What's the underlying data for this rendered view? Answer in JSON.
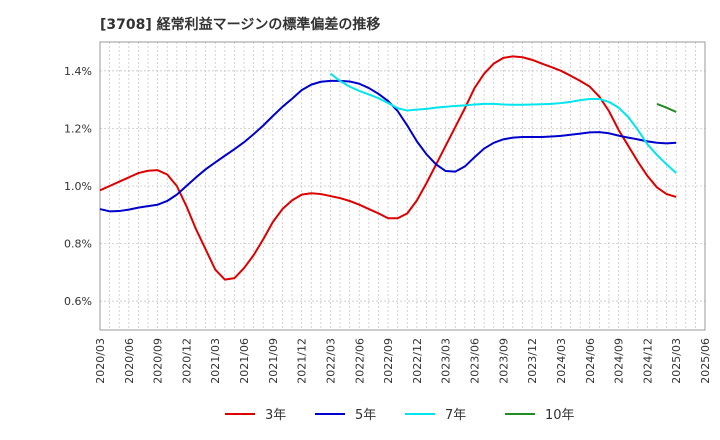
{
  "chart_data": {
    "type": "line",
    "title": "[3708]  経常利益マージンの標準偏差の推移",
    "xlabel": "",
    "ylabel": "",
    "ylim": [
      0.5,
      1.5
    ],
    "yticks": [
      0.6,
      0.8,
      1.0,
      1.2,
      1.4
    ],
    "ytick_labels": [
      "0.6%",
      "0.8%",
      "1.0%",
      "1.2%",
      "1.4%"
    ],
    "xticks": [
      "2020/03",
      "2020/06",
      "2020/09",
      "2020/12",
      "2021/03",
      "2021/06",
      "2021/09",
      "2021/12",
      "2022/03",
      "2022/06",
      "2022/09",
      "2022/12",
      "2023/03",
      "2023/06",
      "2023/09",
      "2023/12",
      "2024/03",
      "2024/06",
      "2024/09",
      "2024/12",
      "2025/03",
      "2025/06"
    ],
    "grid": true,
    "legend_position": "bottom",
    "series": [
      {
        "name": "3年",
        "color": "#dd0000",
        "points": [
          [
            "2020/03",
            0.985
          ],
          [
            "2020/04",
            1.0
          ],
          [
            "2020/05",
            1.015
          ],
          [
            "2020/06",
            1.03
          ],
          [
            "2020/07",
            1.045
          ],
          [
            "2020/08",
            1.053
          ],
          [
            "2020/09",
            1.055
          ],
          [
            "2020/10",
            1.04
          ],
          [
            "2020/11",
            1.0
          ],
          [
            "2020/12",
            0.93
          ],
          [
            "2021/01",
            0.85
          ],
          [
            "2021/02",
            0.78
          ],
          [
            "2021/03",
            0.71
          ],
          [
            "2021/04",
            0.675
          ],
          [
            "2021/05",
            0.68
          ],
          [
            "2021/06",
            0.715
          ],
          [
            "2021/07",
            0.76
          ],
          [
            "2021/08",
            0.815
          ],
          [
            "2021/09",
            0.875
          ],
          [
            "2021/10",
            0.92
          ],
          [
            "2021/11",
            0.95
          ],
          [
            "2021/12",
            0.97
          ],
          [
            "2022/01",
            0.975
          ],
          [
            "2022/02",
            0.972
          ],
          [
            "2022/03",
            0.965
          ],
          [
            "2022/04",
            0.958
          ],
          [
            "2022/05",
            0.948
          ],
          [
            "2022/06",
            0.935
          ],
          [
            "2022/07",
            0.92
          ],
          [
            "2022/08",
            0.905
          ],
          [
            "2022/09",
            0.888
          ],
          [
            "2022/10",
            0.888
          ],
          [
            "2022/11",
            0.905
          ],
          [
            "2022/12",
            0.95
          ],
          [
            "2023/01",
            1.01
          ],
          [
            "2023/02",
            1.075
          ],
          [
            "2023/03",
            1.14
          ],
          [
            "2023/04",
            1.205
          ],
          [
            "2023/05",
            1.27
          ],
          [
            "2023/06",
            1.34
          ],
          [
            "2023/07",
            1.39
          ],
          [
            "2023/08",
            1.425
          ],
          [
            "2023/09",
            1.445
          ],
          [
            "2023/10",
            1.45
          ],
          [
            "2023/11",
            1.447
          ],
          [
            "2023/12",
            1.438
          ],
          [
            "2024/01",
            1.425
          ],
          [
            "2024/02",
            1.413
          ],
          [
            "2024/03",
            1.4
          ],
          [
            "2024/04",
            1.383
          ],
          [
            "2024/05",
            1.365
          ],
          [
            "2024/06",
            1.345
          ],
          [
            "2024/07",
            1.31
          ],
          [
            "2024/08",
            1.26
          ],
          [
            "2024/09",
            1.195
          ],
          [
            "2024/10",
            1.14
          ],
          [
            "2024/11",
            1.085
          ],
          [
            "2024/12",
            1.035
          ],
          [
            "2025/01",
            0.995
          ],
          [
            "2025/02",
            0.972
          ],
          [
            "2025/03",
            0.962
          ]
        ]
      },
      {
        "name": "5年",
        "color": "#0000cc",
        "points": [
          [
            "2020/03",
            0.92
          ],
          [
            "2020/04",
            0.912
          ],
          [
            "2020/05",
            0.913
          ],
          [
            "2020/06",
            0.918
          ],
          [
            "2020/07",
            0.925
          ],
          [
            "2020/08",
            0.93
          ],
          [
            "2020/09",
            0.935
          ],
          [
            "2020/10",
            0.948
          ],
          [
            "2020/11",
            0.97
          ],
          [
            "2020/12",
            1.0
          ],
          [
            "2021/01",
            1.03
          ],
          [
            "2021/02",
            1.058
          ],
          [
            "2021/03",
            1.082
          ],
          [
            "2021/04",
            1.105
          ],
          [
            "2021/05",
            1.128
          ],
          [
            "2021/06",
            1.152
          ],
          [
            "2021/07",
            1.18
          ],
          [
            "2021/08",
            1.21
          ],
          [
            "2021/09",
            1.243
          ],
          [
            "2021/10",
            1.275
          ],
          [
            "2021/11",
            1.303
          ],
          [
            "2021/12",
            1.333
          ],
          [
            "2022/01",
            1.352
          ],
          [
            "2022/02",
            1.362
          ],
          [
            "2022/03",
            1.365
          ],
          [
            "2022/04",
            1.365
          ],
          [
            "2022/05",
            1.363
          ],
          [
            "2022/06",
            1.355
          ],
          [
            "2022/07",
            1.34
          ],
          [
            "2022/08",
            1.32
          ],
          [
            "2022/09",
            1.295
          ],
          [
            "2022/10",
            1.26
          ],
          [
            "2022/11",
            1.21
          ],
          [
            "2022/12",
            1.155
          ],
          [
            "2023/01",
            1.11
          ],
          [
            "2023/02",
            1.075
          ],
          [
            "2023/03",
            1.052
          ],
          [
            "2023/04",
            1.05
          ],
          [
            "2023/05",
            1.068
          ],
          [
            "2023/06",
            1.1
          ],
          [
            "2023/07",
            1.13
          ],
          [
            "2023/08",
            1.15
          ],
          [
            "2023/09",
            1.162
          ],
          [
            "2023/10",
            1.168
          ],
          [
            "2023/11",
            1.17
          ],
          [
            "2023/12",
            1.17
          ],
          [
            "2024/01",
            1.17
          ],
          [
            "2024/02",
            1.172
          ],
          [
            "2024/03",
            1.174
          ],
          [
            "2024/04",
            1.178
          ],
          [
            "2024/05",
            1.182
          ],
          [
            "2024/06",
            1.186
          ],
          [
            "2024/07",
            1.187
          ],
          [
            "2024/08",
            1.183
          ],
          [
            "2024/09",
            1.175
          ],
          [
            "2024/10",
            1.168
          ],
          [
            "2024/11",
            1.162
          ],
          [
            "2024/12",
            1.155
          ],
          [
            "2025/01",
            1.15
          ],
          [
            "2025/02",
            1.148
          ],
          [
            "2025/03",
            1.15
          ]
        ]
      },
      {
        "name": "7年",
        "color": "#00e5ee",
        "points": [
          [
            "2022/03",
            1.39
          ],
          [
            "2022/04",
            1.365
          ],
          [
            "2022/05",
            1.345
          ],
          [
            "2022/06",
            1.33
          ],
          [
            "2022/07",
            1.318
          ],
          [
            "2022/08",
            1.305
          ],
          [
            "2022/09",
            1.288
          ],
          [
            "2022/10",
            1.27
          ],
          [
            "2022/11",
            1.262
          ],
          [
            "2022/12",
            1.265
          ],
          [
            "2023/01",
            1.268
          ],
          [
            "2023/02",
            1.272
          ],
          [
            "2023/03",
            1.275
          ],
          [
            "2023/04",
            1.278
          ],
          [
            "2023/05",
            1.28
          ],
          [
            "2023/06",
            1.283
          ],
          [
            "2023/07",
            1.285
          ],
          [
            "2023/08",
            1.285
          ],
          [
            "2023/09",
            1.283
          ],
          [
            "2023/10",
            1.282
          ],
          [
            "2023/11",
            1.282
          ],
          [
            "2023/12",
            1.283
          ],
          [
            "2024/01",
            1.284
          ],
          [
            "2024/02",
            1.285
          ],
          [
            "2024/03",
            1.288
          ],
          [
            "2024/04",
            1.292
          ],
          [
            "2024/05",
            1.298
          ],
          [
            "2024/06",
            1.302
          ],
          [
            "2024/07",
            1.302
          ],
          [
            "2024/08",
            1.292
          ],
          [
            "2024/09",
            1.272
          ],
          [
            "2024/10",
            1.24
          ],
          [
            "2024/11",
            1.195
          ],
          [
            "2024/12",
            1.145
          ],
          [
            "2025/01",
            1.108
          ],
          [
            "2025/02",
            1.075
          ],
          [
            "2025/03",
            1.045
          ]
        ]
      },
      {
        "name": "10年",
        "color": "#228b22",
        "points": [
          [
            "2025/01",
            1.285
          ],
          [
            "2025/02",
            1.272
          ],
          [
            "2025/03",
            1.257
          ]
        ]
      }
    ]
  }
}
